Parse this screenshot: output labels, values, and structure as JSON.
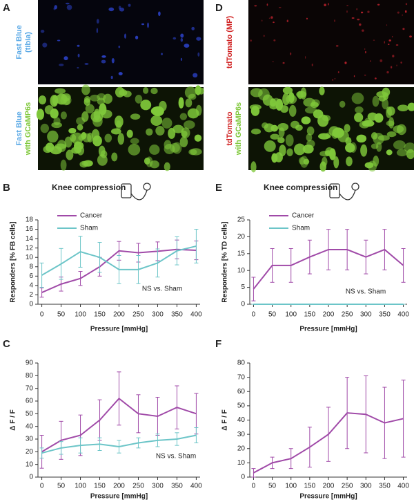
{
  "panels": {
    "letters": [
      "A",
      "B",
      "C",
      "D",
      "E",
      "F"
    ],
    "image_labels": [
      {
        "line1": "Fast Blue",
        "line2": "(tibia)"
      },
      {
        "line1": "Fast Blue",
        "line2": "with GCaMP6s"
      },
      {
        "line1": "tdTomato (MP)",
        "line2": ""
      },
      {
        "line1": "tdTomato",
        "line2": "with GCaMP6s"
      }
    ]
  },
  "chart_data": [
    {
      "type": "line",
      "title": "Knee compression",
      "ylabel": "Responders [% FB cells]",
      "xlabel": "Pressure [mmHg]",
      "annotation": "NS vs. Sham",
      "legend": "upper left",
      "x": [
        0,
        50,
        100,
        150,
        200,
        250,
        300,
        350,
        400
      ],
      "xlim": [
        -10,
        410
      ],
      "xticks": [
        0,
        50,
        100,
        150,
        200,
        250,
        300,
        350,
        400
      ],
      "ylim": [
        0,
        18
      ],
      "yticks": [
        0,
        2,
        4,
        6,
        8,
        10,
        12,
        14,
        16,
        18
      ],
      "series": [
        {
          "name": "Cancer",
          "color": "#a04aa8",
          "values": [
            2.5,
            4.3,
            5.5,
            8,
            11.4,
            11,
            11.3,
            11.7,
            11.5
          ],
          "errors": [
            1,
            1.5,
            1.5,
            2,
            2,
            2,
            2,
            2,
            2
          ]
        },
        {
          "name": "Sham",
          "color": "#6cc5c8",
          "values": [
            6.2,
            8.6,
            11.2,
            10,
            7.4,
            7.4,
            8.8,
            11.4,
            12.4
          ],
          "errors": [
            2.6,
            3.3,
            3.3,
            3.2,
            3,
            3,
            3,
            3,
            3.6
          ]
        }
      ]
    },
    {
      "type": "line",
      "ylabel": "Δ F / F",
      "xlabel": "Pressure [mmHg]",
      "annotation": "NS vs. Sham",
      "x": [
        0,
        50,
        100,
        150,
        200,
        250,
        300,
        350,
        400
      ],
      "xlim": [
        -10,
        410
      ],
      "xticks": [
        0,
        50,
        100,
        150,
        200,
        250,
        300,
        350,
        400
      ],
      "ylim": [
        0,
        90
      ],
      "yticks": [
        0,
        10,
        20,
        30,
        40,
        50,
        60,
        70,
        80,
        90
      ],
      "series": [
        {
          "name": "Cancer",
          "color": "#a04aa8",
          "values": [
            20,
            29,
            33,
            45,
            62,
            50,
            48,
            55,
            50
          ],
          "errors": [
            13,
            15,
            16,
            16,
            21,
            15,
            15,
            17,
            16
          ]
        },
        {
          "name": "Sham",
          "color": "#6cc5c8",
          "values": [
            19,
            23,
            25,
            26,
            24,
            27,
            29,
            30,
            33
          ],
          "errors": [
            4,
            5,
            6,
            5,
            5,
            4,
            5,
            5,
            6
          ]
        }
      ]
    },
    {
      "type": "line",
      "title": "Knee compression",
      "ylabel": "Responders [% TD cells]",
      "xlabel": "Pressure [mmHg]",
      "annotation": "NS vs. Sham",
      "legend": "upper left",
      "x": [
        0,
        50,
        100,
        150,
        200,
        250,
        300,
        350,
        400
      ],
      "xlim": [
        -10,
        410
      ],
      "xticks": [
        0,
        50,
        100,
        150,
        200,
        250,
        300,
        350,
        400
      ],
      "ylim": [
        0,
        25
      ],
      "yticks": [
        0,
        5,
        10,
        15,
        20,
        25
      ],
      "series": [
        {
          "name": "Cancer",
          "color": "#a04aa8",
          "values": [
            4.5,
            11.5,
            11.5,
            14,
            16.2,
            16.2,
            14,
            16.2,
            11.5
          ],
          "errors": [
            3.5,
            5,
            5,
            5,
            6,
            6,
            5,
            6,
            5
          ]
        },
        {
          "name": "Sham",
          "color": "#6cc5c8",
          "values": [
            0,
            0,
            0,
            0,
            0,
            0,
            0,
            0,
            0
          ],
          "errors": [
            0,
            0,
            0,
            0,
            0,
            0,
            0,
            0,
            0
          ]
        }
      ]
    },
    {
      "type": "line",
      "ylabel": "Δ F / F",
      "xlabel": "Pressure [mmHg]",
      "x": [
        0,
        50,
        100,
        150,
        200,
        250,
        300,
        350,
        400
      ],
      "xlim": [
        -10,
        410
      ],
      "xticks": [
        0,
        50,
        100,
        150,
        200,
        250,
        300,
        350,
        400
      ],
      "ylim": [
        0,
        80
      ],
      "yticks": [
        0,
        10,
        20,
        30,
        40,
        50,
        60,
        70,
        80
      ],
      "series": [
        {
          "name": "Cancer",
          "color": "#a04aa8",
          "values": [
            3,
            10,
            13,
            21,
            30,
            45,
            44,
            38,
            41
          ],
          "errors": [
            3,
            4,
            7,
            14,
            19,
            25,
            27,
            25,
            27
          ]
        }
      ]
    }
  ]
}
